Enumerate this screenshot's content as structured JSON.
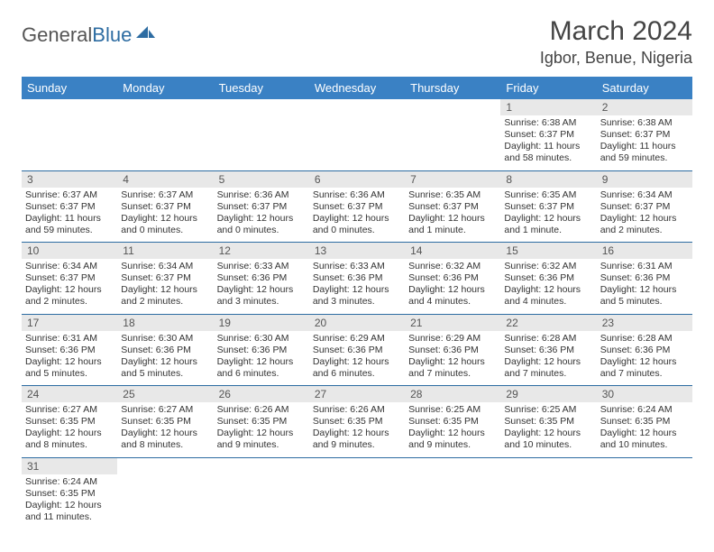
{
  "logo": {
    "part1": "General",
    "part2": "Blue"
  },
  "title": "March 2024",
  "location": "Igbor, Benue, Nigeria",
  "colors": {
    "header_bg": "#3a81c4",
    "header_text": "#ffffff",
    "row_border": "#2d6ca2",
    "daynum_bg": "#e8e8e8",
    "logo_accent": "#2d6ca2"
  },
  "dayNames": [
    "Sunday",
    "Monday",
    "Tuesday",
    "Wednesday",
    "Thursday",
    "Friday",
    "Saturday"
  ],
  "weeks": [
    [
      null,
      null,
      null,
      null,
      null,
      {
        "n": "1",
        "sr": "Sunrise: 6:38 AM",
        "ss": "Sunset: 6:37 PM",
        "d1": "Daylight: 11 hours",
        "d2": "and 58 minutes."
      },
      {
        "n": "2",
        "sr": "Sunrise: 6:38 AM",
        "ss": "Sunset: 6:37 PM",
        "d1": "Daylight: 11 hours",
        "d2": "and 59 minutes."
      }
    ],
    [
      {
        "n": "3",
        "sr": "Sunrise: 6:37 AM",
        "ss": "Sunset: 6:37 PM",
        "d1": "Daylight: 11 hours",
        "d2": "and 59 minutes."
      },
      {
        "n": "4",
        "sr": "Sunrise: 6:37 AM",
        "ss": "Sunset: 6:37 PM",
        "d1": "Daylight: 12 hours",
        "d2": "and 0 minutes."
      },
      {
        "n": "5",
        "sr": "Sunrise: 6:36 AM",
        "ss": "Sunset: 6:37 PM",
        "d1": "Daylight: 12 hours",
        "d2": "and 0 minutes."
      },
      {
        "n": "6",
        "sr": "Sunrise: 6:36 AM",
        "ss": "Sunset: 6:37 PM",
        "d1": "Daylight: 12 hours",
        "d2": "and 0 minutes."
      },
      {
        "n": "7",
        "sr": "Sunrise: 6:35 AM",
        "ss": "Sunset: 6:37 PM",
        "d1": "Daylight: 12 hours",
        "d2": "and 1 minute."
      },
      {
        "n": "8",
        "sr": "Sunrise: 6:35 AM",
        "ss": "Sunset: 6:37 PM",
        "d1": "Daylight: 12 hours",
        "d2": "and 1 minute."
      },
      {
        "n": "9",
        "sr": "Sunrise: 6:34 AM",
        "ss": "Sunset: 6:37 PM",
        "d1": "Daylight: 12 hours",
        "d2": "and 2 minutes."
      }
    ],
    [
      {
        "n": "10",
        "sr": "Sunrise: 6:34 AM",
        "ss": "Sunset: 6:37 PM",
        "d1": "Daylight: 12 hours",
        "d2": "and 2 minutes."
      },
      {
        "n": "11",
        "sr": "Sunrise: 6:34 AM",
        "ss": "Sunset: 6:37 PM",
        "d1": "Daylight: 12 hours",
        "d2": "and 2 minutes."
      },
      {
        "n": "12",
        "sr": "Sunrise: 6:33 AM",
        "ss": "Sunset: 6:36 PM",
        "d1": "Daylight: 12 hours",
        "d2": "and 3 minutes."
      },
      {
        "n": "13",
        "sr": "Sunrise: 6:33 AM",
        "ss": "Sunset: 6:36 PM",
        "d1": "Daylight: 12 hours",
        "d2": "and 3 minutes."
      },
      {
        "n": "14",
        "sr": "Sunrise: 6:32 AM",
        "ss": "Sunset: 6:36 PM",
        "d1": "Daylight: 12 hours",
        "d2": "and 4 minutes."
      },
      {
        "n": "15",
        "sr": "Sunrise: 6:32 AM",
        "ss": "Sunset: 6:36 PM",
        "d1": "Daylight: 12 hours",
        "d2": "and 4 minutes."
      },
      {
        "n": "16",
        "sr": "Sunrise: 6:31 AM",
        "ss": "Sunset: 6:36 PM",
        "d1": "Daylight: 12 hours",
        "d2": "and 5 minutes."
      }
    ],
    [
      {
        "n": "17",
        "sr": "Sunrise: 6:31 AM",
        "ss": "Sunset: 6:36 PM",
        "d1": "Daylight: 12 hours",
        "d2": "and 5 minutes."
      },
      {
        "n": "18",
        "sr": "Sunrise: 6:30 AM",
        "ss": "Sunset: 6:36 PM",
        "d1": "Daylight: 12 hours",
        "d2": "and 5 minutes."
      },
      {
        "n": "19",
        "sr": "Sunrise: 6:30 AM",
        "ss": "Sunset: 6:36 PM",
        "d1": "Daylight: 12 hours",
        "d2": "and 6 minutes."
      },
      {
        "n": "20",
        "sr": "Sunrise: 6:29 AM",
        "ss": "Sunset: 6:36 PM",
        "d1": "Daylight: 12 hours",
        "d2": "and 6 minutes."
      },
      {
        "n": "21",
        "sr": "Sunrise: 6:29 AM",
        "ss": "Sunset: 6:36 PM",
        "d1": "Daylight: 12 hours",
        "d2": "and 7 minutes."
      },
      {
        "n": "22",
        "sr": "Sunrise: 6:28 AM",
        "ss": "Sunset: 6:36 PM",
        "d1": "Daylight: 12 hours",
        "d2": "and 7 minutes."
      },
      {
        "n": "23",
        "sr": "Sunrise: 6:28 AM",
        "ss": "Sunset: 6:36 PM",
        "d1": "Daylight: 12 hours",
        "d2": "and 7 minutes."
      }
    ],
    [
      {
        "n": "24",
        "sr": "Sunrise: 6:27 AM",
        "ss": "Sunset: 6:35 PM",
        "d1": "Daylight: 12 hours",
        "d2": "and 8 minutes."
      },
      {
        "n": "25",
        "sr": "Sunrise: 6:27 AM",
        "ss": "Sunset: 6:35 PM",
        "d1": "Daylight: 12 hours",
        "d2": "and 8 minutes."
      },
      {
        "n": "26",
        "sr": "Sunrise: 6:26 AM",
        "ss": "Sunset: 6:35 PM",
        "d1": "Daylight: 12 hours",
        "d2": "and 9 minutes."
      },
      {
        "n": "27",
        "sr": "Sunrise: 6:26 AM",
        "ss": "Sunset: 6:35 PM",
        "d1": "Daylight: 12 hours",
        "d2": "and 9 minutes."
      },
      {
        "n": "28",
        "sr": "Sunrise: 6:25 AM",
        "ss": "Sunset: 6:35 PM",
        "d1": "Daylight: 12 hours",
        "d2": "and 9 minutes."
      },
      {
        "n": "29",
        "sr": "Sunrise: 6:25 AM",
        "ss": "Sunset: 6:35 PM",
        "d1": "Daylight: 12 hours",
        "d2": "and 10 minutes."
      },
      {
        "n": "30",
        "sr": "Sunrise: 6:24 AM",
        "ss": "Sunset: 6:35 PM",
        "d1": "Daylight: 12 hours",
        "d2": "and 10 minutes."
      }
    ],
    [
      {
        "n": "31",
        "sr": "Sunrise: 6:24 AM",
        "ss": "Sunset: 6:35 PM",
        "d1": "Daylight: 12 hours",
        "d2": "and 11 minutes."
      },
      null,
      null,
      null,
      null,
      null,
      null
    ]
  ]
}
